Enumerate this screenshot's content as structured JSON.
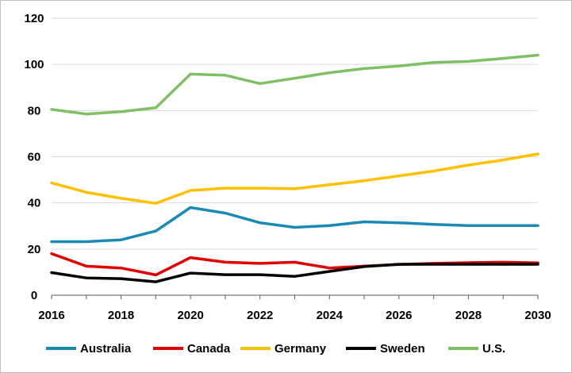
{
  "chart_data": {
    "type": "line",
    "title": "",
    "xlabel": "",
    "ylabel": "",
    "x": [
      2016,
      2017,
      2018,
      2019,
      2020,
      2021,
      2022,
      2023,
      2024,
      2025,
      2026,
      2027,
      2028,
      2029,
      2030
    ],
    "xticks": [
      "2016",
      "2018",
      "2020",
      "2022",
      "2024",
      "2026",
      "2028",
      "2030"
    ],
    "ylim": [
      0,
      120
    ],
    "yticks": [
      "0",
      "20",
      "40",
      "60",
      "80",
      "100",
      "120"
    ],
    "grid": "horizontal",
    "legend_position": "bottom",
    "series": [
      {
        "name": "Australia",
        "color": "#1a8ab5",
        "values": [
          23.2,
          23.2,
          24.0,
          27.8,
          38.0,
          35.6,
          31.4,
          29.4,
          30.2,
          31.8,
          31.4,
          30.7,
          30.2,
          30.2,
          30.2
        ]
      },
      {
        "name": "Canada",
        "color": "#e00000",
        "values": [
          18.0,
          12.6,
          11.8,
          8.8,
          16.3,
          14.3,
          13.8,
          14.3,
          11.8,
          12.6,
          13.3,
          13.8,
          14.1,
          14.3,
          14.0
        ]
      },
      {
        "name": "Germany",
        "color": "#ffc000",
        "values": [
          48.7,
          44.6,
          42.0,
          39.8,
          45.4,
          46.4,
          46.4,
          46.1,
          47.9,
          49.6,
          51.7,
          53.8,
          56.4,
          58.6,
          61.2
        ]
      },
      {
        "name": "Sweden",
        "color": "#000000",
        "values": [
          9.8,
          7.5,
          7.2,
          5.8,
          9.6,
          8.9,
          8.9,
          8.2,
          10.3,
          12.4,
          13.4,
          13.4,
          13.4,
          13.4,
          13.4
        ]
      },
      {
        "name": "U.S.",
        "color": "#7fbf65",
        "values": [
          80.5,
          78.5,
          79.5,
          81.2,
          95.8,
          95.3,
          91.7,
          94.0,
          96.4,
          98.2,
          99.3,
          100.8,
          101.3,
          102.6,
          104.0
        ]
      }
    ]
  }
}
